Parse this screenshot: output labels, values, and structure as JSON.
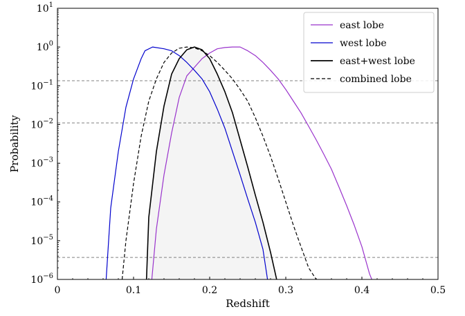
{
  "chart_data": {
    "type": "line",
    "xlabel": "Redshift",
    "ylabel": "Probability",
    "xlim": [
      0,
      0.5
    ],
    "ylim_log10": [
      -6,
      1
    ],
    "y_scale": "log",
    "grid": false,
    "legend_position": "top-right",
    "x_ticks": [
      {
        "value": 0,
        "label": "0"
      },
      {
        "value": 0.1,
        "label": "0.1"
      },
      {
        "value": 0.2,
        "label": "0.2"
      },
      {
        "value": 0.3,
        "label": "0.3"
      },
      {
        "value": 0.4,
        "label": "0.4"
      },
      {
        "value": 0.5,
        "label": "0.5"
      }
    ],
    "y_ticks": [
      {
        "exp": 1,
        "base": "10",
        "sup": "1"
      },
      {
        "exp": 0,
        "base": "10",
        "sup": "0"
      },
      {
        "exp": -1,
        "base": "10",
        "sup": "−1"
      },
      {
        "exp": -2,
        "base": "10",
        "sup": "−2"
      },
      {
        "exp": -3,
        "base": "10",
        "sup": "−3"
      },
      {
        "exp": -4,
        "base": "10",
        "sup": "−4"
      },
      {
        "exp": -5,
        "base": "10",
        "sup": "−5"
      },
      {
        "exp": -6,
        "base": "10",
        "sup": "−6"
      }
    ],
    "reference_lines_y": [
      0.135,
      0.011,
      3.7e-06
    ],
    "series": [
      {
        "name": "east lobe",
        "color": "#9932cc",
        "dash": "solid",
        "points": [
          [
            0.124,
            1e-06
          ],
          [
            0.13,
            2e-05
          ],
          [
            0.14,
            0.0005
          ],
          [
            0.15,
            0.006
          ],
          [
            0.16,
            0.05
          ],
          [
            0.17,
            0.18
          ],
          [
            0.18,
            0.3
          ],
          [
            0.19,
            0.5
          ],
          [
            0.2,
            0.7
          ],
          [
            0.21,
            0.9
          ],
          [
            0.22,
            0.97
          ],
          [
            0.23,
            1.0
          ],
          [
            0.24,
            1.0
          ],
          [
            0.25,
            0.8
          ],
          [
            0.26,
            0.6
          ],
          [
            0.27,
            0.4
          ],
          [
            0.28,
            0.25
          ],
          [
            0.29,
            0.15
          ],
          [
            0.3,
            0.08
          ],
          [
            0.31,
            0.04
          ],
          [
            0.32,
            0.02
          ],
          [
            0.33,
            0.009
          ],
          [
            0.34,
            0.004
          ],
          [
            0.35,
            0.0017
          ],
          [
            0.36,
            0.0007
          ],
          [
            0.37,
            0.00024
          ],
          [
            0.38,
            8e-05
          ],
          [
            0.39,
            2.5e-05
          ],
          [
            0.4,
            7e-06
          ],
          [
            0.41,
            1.4e-06
          ],
          [
            0.413,
            1e-06
          ]
        ]
      },
      {
        "name": "west lobe",
        "color": "#0000cd",
        "dash": "solid",
        "points": [
          [
            0.064,
            1e-06
          ],
          [
            0.07,
            7e-05
          ],
          [
            0.08,
            0.002
          ],
          [
            0.09,
            0.028
          ],
          [
            0.1,
            0.15
          ],
          [
            0.11,
            0.5
          ],
          [
            0.115,
            0.8
          ],
          [
            0.125,
            1.0
          ],
          [
            0.14,
            0.9
          ],
          [
            0.15,
            0.8
          ],
          [
            0.16,
            0.6
          ],
          [
            0.17,
            0.4
          ],
          [
            0.18,
            0.25
          ],
          [
            0.19,
            0.15
          ],
          [
            0.2,
            0.07
          ],
          [
            0.21,
            0.025
          ],
          [
            0.22,
            0.008
          ],
          [
            0.23,
            0.002
          ],
          [
            0.24,
            0.0005
          ],
          [
            0.25,
            0.00012
          ],
          [
            0.26,
            3e-05
          ],
          [
            0.27,
            6e-06
          ],
          [
            0.276,
            1e-06
          ]
        ]
      },
      {
        "name": "east+west lobe",
        "color": "#000000",
        "dash": "solid",
        "points": [
          [
            0.117,
            1e-06
          ],
          [
            0.12,
            4e-05
          ],
          [
            0.13,
            0.002
          ],
          [
            0.14,
            0.03
          ],
          [
            0.15,
            0.2
          ],
          [
            0.16,
            0.5
          ],
          [
            0.17,
            0.85
          ],
          [
            0.18,
            1.0
          ],
          [
            0.19,
            0.85
          ],
          [
            0.2,
            0.5
          ],
          [
            0.21,
            0.2
          ],
          [
            0.22,
            0.07
          ],
          [
            0.23,
            0.02
          ],
          [
            0.24,
            0.004
          ],
          [
            0.25,
            0.0008
          ],
          [
            0.26,
            0.00015
          ],
          [
            0.27,
            3e-05
          ],
          [
            0.28,
            5e-06
          ],
          [
            0.288,
            1e-06
          ]
        ]
      },
      {
        "name": "combined lobe",
        "color": "#000000",
        "dash": "dashed",
        "points": [
          [
            0.085,
            1e-06
          ],
          [
            0.09,
            1e-05
          ],
          [
            0.1,
            0.0003
          ],
          [
            0.11,
            0.005
          ],
          [
            0.12,
            0.04
          ],
          [
            0.13,
            0.15
          ],
          [
            0.14,
            0.4
          ],
          [
            0.15,
            0.7
          ],
          [
            0.16,
            0.93
          ],
          [
            0.17,
            1.0
          ],
          [
            0.18,
            0.95
          ],
          [
            0.19,
            0.8
          ],
          [
            0.2,
            0.6
          ],
          [
            0.21,
            0.4
          ],
          [
            0.22,
            0.25
          ],
          [
            0.23,
            0.15
          ],
          [
            0.24,
            0.08
          ],
          [
            0.25,
            0.04
          ],
          [
            0.26,
            0.015
          ],
          [
            0.27,
            0.005
          ],
          [
            0.28,
            0.0015
          ],
          [
            0.29,
            0.0004
          ],
          [
            0.3,
            0.0001
          ],
          [
            0.31,
            2.5e-05
          ],
          [
            0.32,
            7e-06
          ],
          [
            0.33,
            2e-06
          ],
          [
            0.34,
            1e-06
          ]
        ]
      }
    ],
    "shaded_band": {
      "color": "#e6e6e6",
      "x_range": [
        0.117,
        0.288
      ]
    }
  }
}
